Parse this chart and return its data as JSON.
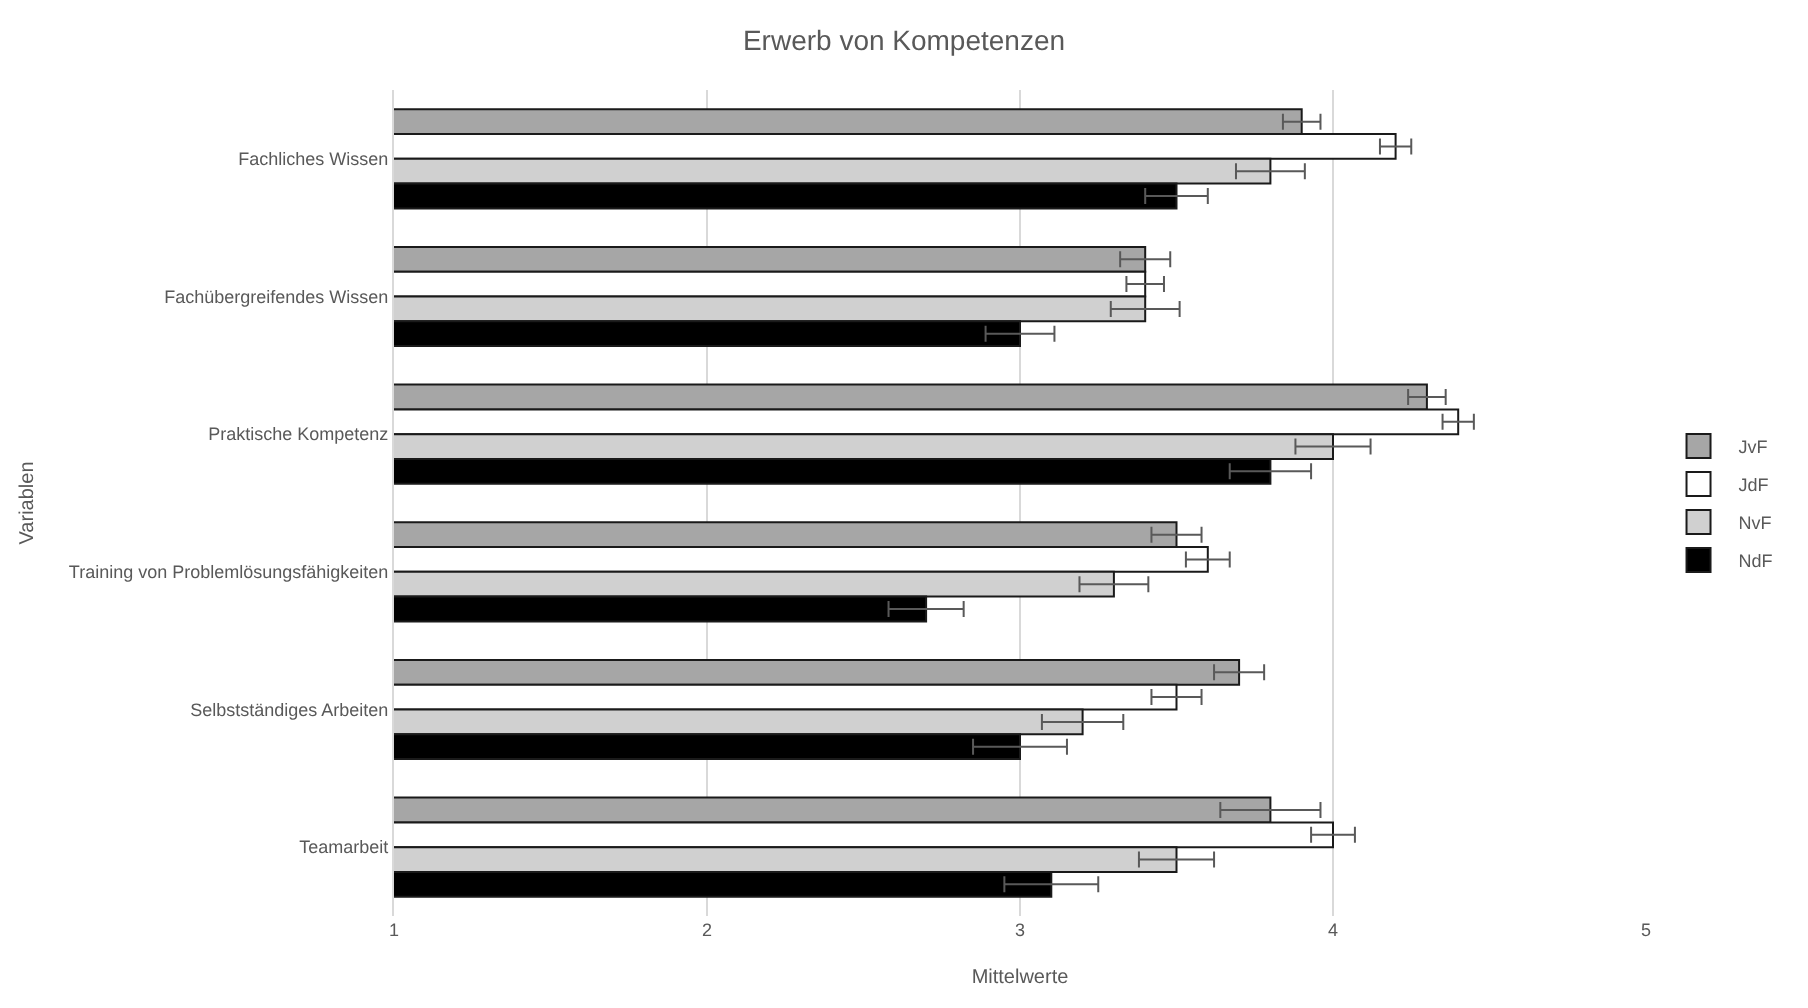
{
  "chart_data": {
    "type": "bar",
    "orientation": "horizontal",
    "title": "Erwerb von Kompetenzen",
    "xlabel": "Mittelwerte",
    "ylabel": "Variablen",
    "categories": [
      "Fachliches Wissen",
      "Fachübergreifendes Wissen",
      "Praktische Kompetenz",
      "Training von Problemlösungsfähigkeiten",
      "Selbstständiges Arbeiten",
      "Teamarbeit"
    ],
    "series": [
      {
        "name": "JvF",
        "color": "#a6a6a6",
        "values": [
          3.9,
          3.4,
          4.3,
          3.5,
          3.7,
          3.8
        ],
        "errors": [
          0.06,
          0.08,
          0.06,
          0.08,
          0.08,
          0.16
        ]
      },
      {
        "name": "JdF",
        "color": "#ffffff",
        "values": [
          4.2,
          3.4,
          4.4,
          3.6,
          3.5,
          4.0
        ],
        "errors": [
          0.05,
          0.06,
          0.05,
          0.07,
          0.08,
          0.07
        ]
      },
      {
        "name": "NvF",
        "color": "#d0d0d0",
        "values": [
          3.8,
          3.4,
          4.0,
          3.3,
          3.2,
          3.5
        ],
        "errors": [
          0.11,
          0.11,
          0.12,
          0.11,
          0.13,
          0.12
        ]
      },
      {
        "name": "NdF",
        "color": "#000000",
        "values": [
          3.5,
          3.0,
          3.8,
          2.7,
          3.0,
          3.1
        ],
        "errors": [
          0.1,
          0.11,
          0.13,
          0.12,
          0.15,
          0.15
        ]
      }
    ],
    "xlim": [
      1,
      5
    ],
    "xticks": [
      1,
      2,
      3,
      4,
      5
    ],
    "grid": "x",
    "legend": "right"
  }
}
